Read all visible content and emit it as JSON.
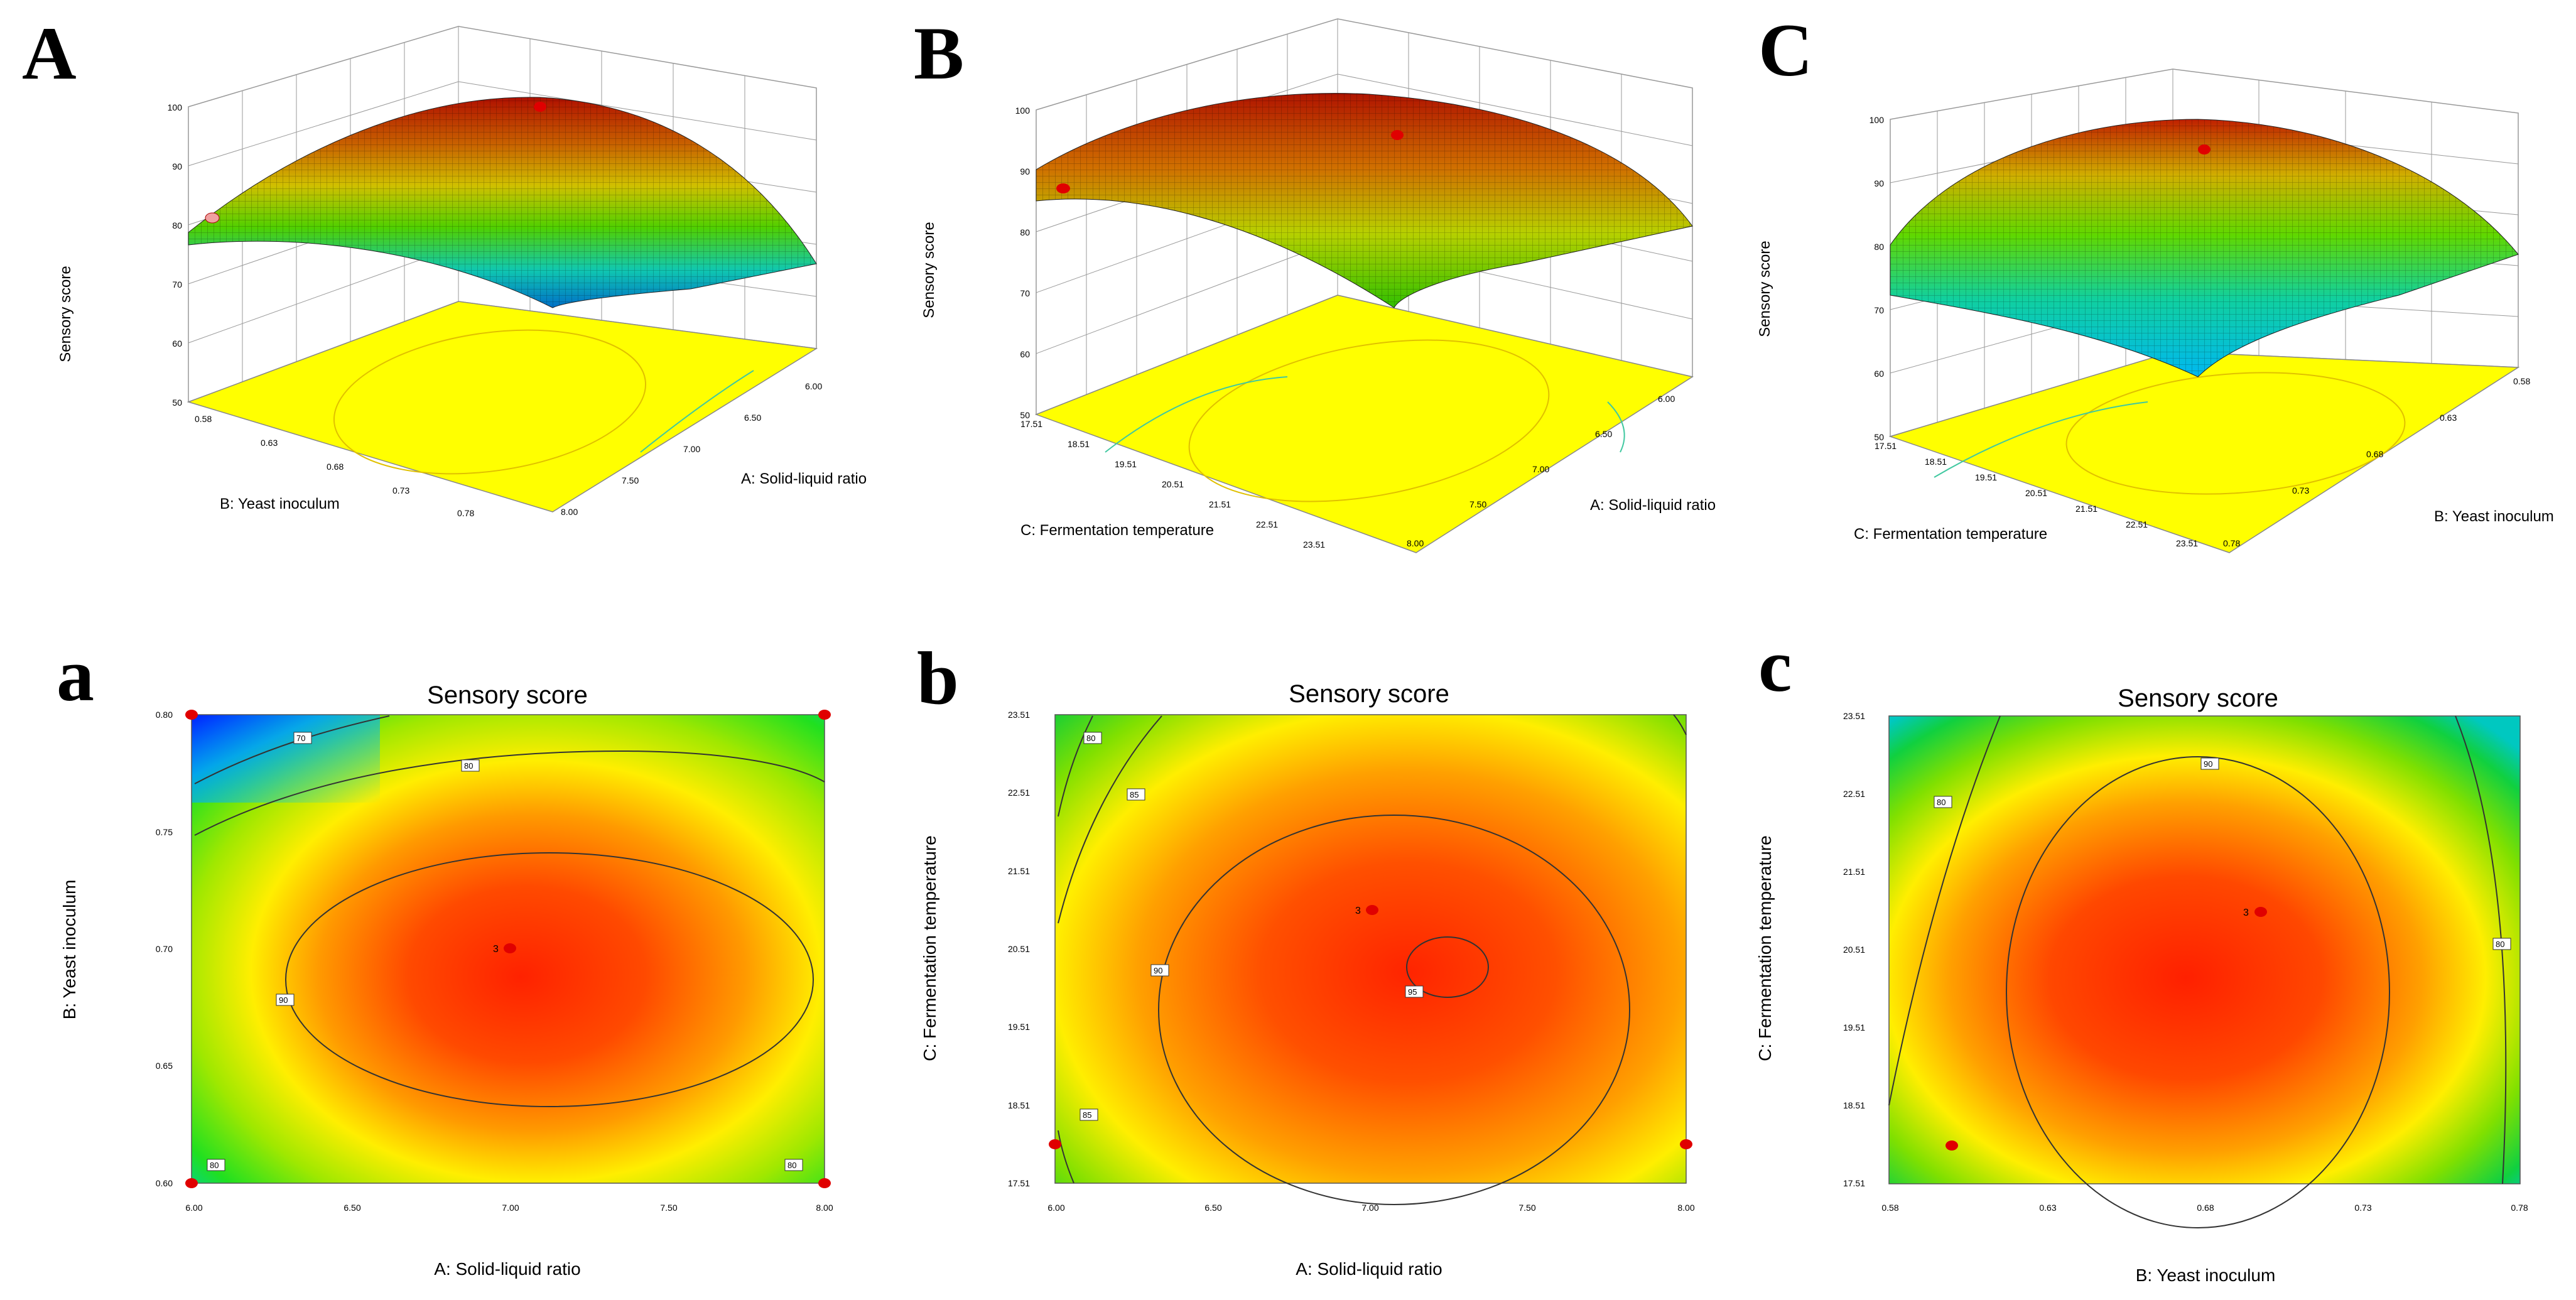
{
  "colors": {
    "surface_low": "#00bfff",
    "surface_mid": "#7ae000",
    "surface_high": "#c81400",
    "floor": "#ffff00",
    "contour_low": "#0040ff",
    "contour_mid": "#ffff00",
    "contour_high": "#ff1a00",
    "design_point": "#e00000"
  },
  "chart_data": [
    {
      "panel": "A",
      "type": "surface3d",
      "zlabel": "Sensory score",
      "zticks": [
        "50",
        "60",
        "70",
        "80",
        "90",
        "100"
      ],
      "zlim": [
        50,
        100
      ],
      "x_axis": {
        "label": "A: Solid-liquid ratio",
        "ticks": [
          "6.00",
          "6.50",
          "7.00",
          "7.50",
          "8.00"
        ],
        "range": [
          6.0,
          8.0
        ]
      },
      "y_axis": {
        "label": "B: Yeast inoculum",
        "ticks": [
          "0.58",
          "0.63",
          "0.68",
          "0.73",
          "0.78"
        ],
        "range": [
          0.58,
          0.78
        ]
      },
      "surface_range": [
        56,
        96
      ],
      "design_point_scores": [
        95,
        74
      ]
    },
    {
      "panel": "B",
      "type": "surface3d",
      "zlabel": "Sensory score",
      "zticks": [
        "50",
        "60",
        "70",
        "80",
        "90",
        "100"
      ],
      "zlim": [
        50,
        100
      ],
      "x_axis": {
        "label": "A: Solid-liquid ratio",
        "ticks": [
          "6.00",
          "6.50",
          "7.00",
          "7.50",
          "8.00"
        ],
        "range": [
          6.0,
          8.0
        ]
      },
      "y_axis": {
        "label": "C: Fermentation temperature",
        "ticks": [
          "17.51",
          "18.51",
          "19.51",
          "20.51",
          "21.51",
          "22.51",
          "23.51"
        ],
        "range": [
          17.51,
          23.51
        ]
      },
      "surface_range": [
        76,
        96
      ],
      "design_point_scores": [
        95,
        84
      ]
    },
    {
      "panel": "C",
      "type": "surface3d",
      "zlabel": "Sensory score",
      "zticks": [
        "50",
        "60",
        "70",
        "80",
        "90",
        "100"
      ],
      "zlim": [
        50,
        100
      ],
      "x_axis": {
        "label": "B: Yeast inoculum",
        "ticks": [
          "0.58",
          "0.63",
          "0.68",
          "0.73",
          "0.78"
        ],
        "range": [
          0.58,
          0.78
        ]
      },
      "y_axis": {
        "label": "C: Fermentation temperature",
        "ticks": [
          "17.51",
          "18.51",
          "19.51",
          "20.51",
          "21.51",
          "22.51",
          "23.51"
        ],
        "range": [
          17.51,
          23.51
        ]
      },
      "surface_range": [
        58,
        96
      ],
      "design_point_scores": [
        95
      ]
    },
    {
      "panel": "a",
      "type": "contour",
      "title": "Sensory score",
      "xlabel": "A: Solid-liquid ratio",
      "ylabel": "B: Yeast inoculum",
      "xticks": [
        "6.00",
        "6.50",
        "7.00",
        "7.50",
        "8.00"
      ],
      "yticks": [
        "0.60",
        "0.65",
        "0.70",
        "0.75",
        "0.80"
      ],
      "xlim": [
        6.0,
        8.0
      ],
      "ylim": [
        0.6,
        0.8
      ],
      "center_point": {
        "x": 7.0,
        "y": 0.7,
        "label": "3"
      },
      "corner_points": [
        [
          6.0,
          0.8
        ],
        [
          8.0,
          0.8
        ],
        [
          6.0,
          0.6
        ],
        [
          8.0,
          0.6
        ]
      ],
      "contour_labels": [
        "70",
        "80",
        "90",
        "80",
        "80"
      ]
    },
    {
      "panel": "b",
      "type": "contour",
      "title": "Sensory score",
      "xlabel": "A: Solid-liquid ratio",
      "ylabel": "C: Fermentation temperature",
      "xticks": [
        "6.00",
        "6.50",
        "7.00",
        "7.50",
        "8.00"
      ],
      "yticks": [
        "17.51",
        "18.51",
        "19.51",
        "20.51",
        "21.51",
        "22.51",
        "23.51"
      ],
      "xlim": [
        6.0,
        8.0
      ],
      "ylim": [
        17.51,
        23.51
      ],
      "center_point": {
        "x": 7.0,
        "y": 21.01,
        "label": "3"
      },
      "corner_points": [
        [
          6.0,
          18.01
        ],
        [
          8.0,
          18.01
        ]
      ],
      "contour_labels": [
        "80",
        "85",
        "90",
        "95",
        "85"
      ]
    },
    {
      "panel": "c",
      "type": "contour",
      "title": "Sensory score",
      "xlabel": "B: Yeast inoculum",
      "ylabel": "C: Fermentation temperature",
      "xticks": [
        "0.58",
        "0.63",
        "0.68",
        "0.73",
        "0.78"
      ],
      "yticks": [
        "17.51",
        "18.51",
        "19.51",
        "20.51",
        "21.51",
        "22.51",
        "23.51"
      ],
      "xlim": [
        0.58,
        0.78
      ],
      "ylim": [
        17.51,
        23.51
      ],
      "center_point": {
        "x": 0.69,
        "y": 20.99,
        "label": "3"
      },
      "corner_points": [
        [
          0.6,
          18.01
        ]
      ],
      "contour_labels": [
        "80",
        "90",
        "80"
      ]
    }
  ]
}
